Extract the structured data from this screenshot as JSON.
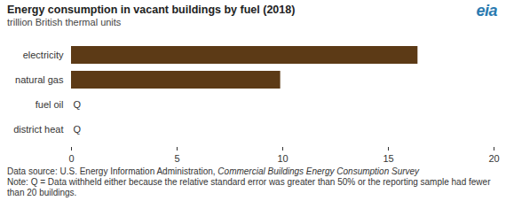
{
  "chart_data": {
    "type": "bar",
    "orientation": "horizontal",
    "title": "Energy consumption in vacant buildings by fuel (2018)",
    "subtitle": "trillion British thermal units",
    "logo": "eia",
    "categories": [
      "electricity",
      "natural gas",
      "fuel oil",
      "district heat"
    ],
    "values": [
      16.4,
      9.9,
      null,
      null
    ],
    "value_labels": [
      null,
      null,
      "Q",
      "Q"
    ],
    "color": "#5c3a16",
    "xlim": [
      0,
      20
    ],
    "xticks": [
      0,
      5,
      10,
      15,
      20
    ],
    "grid": false,
    "source_prefix": "Data source: U.S. Energy Information Administration, ",
    "source_title": "Commercial Buildings Energy Consumption Survey",
    "note": "Note: Q = Data withheld either because the relative standard error was greater than 50% or the reporting sample had fewer than 20 buildings."
  }
}
